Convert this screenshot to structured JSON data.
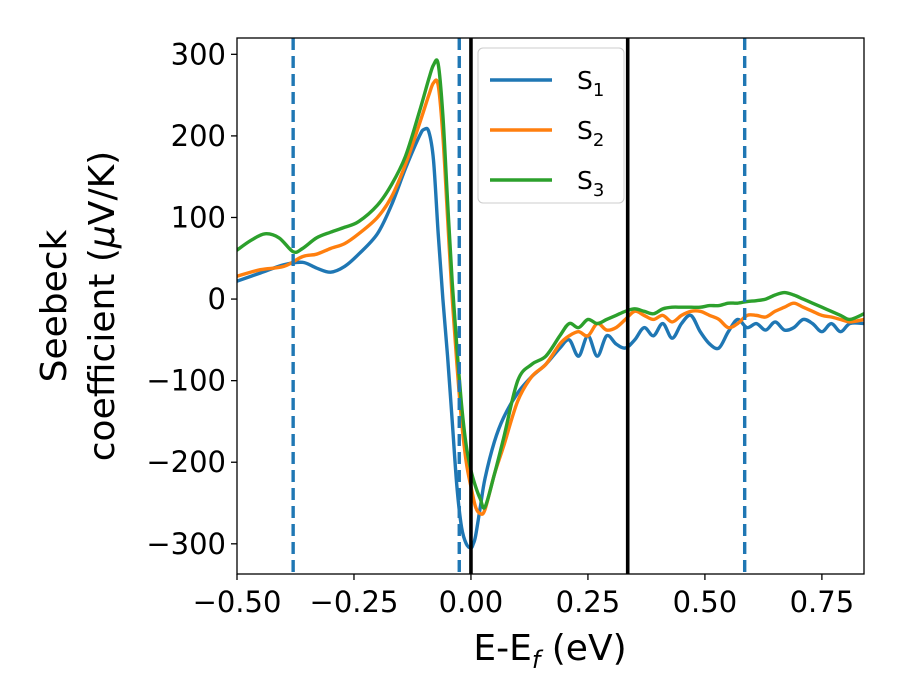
{
  "chart_data": {
    "type": "line",
    "xlabel": {
      "main": "E-E",
      "sub": "f",
      "suffix": " (eV)"
    },
    "ylabel": {
      "line1": "Seebeck",
      "line2": "coefficient  (",
      "mu": "μ",
      "unit": "V/K)"
    },
    "xlim": [
      -0.5,
      0.84
    ],
    "ylim": [
      -337,
      320
    ],
    "xticks": [
      {
        "value": -0.5,
        "label": "−0.50"
      },
      {
        "value": -0.25,
        "label": "−0.25"
      },
      {
        "value": 0.0,
        "label": "0.00"
      },
      {
        "value": 0.25,
        "label": "0.25"
      },
      {
        "value": 0.5,
        "label": "0.50"
      },
      {
        "value": 0.75,
        "label": "0.75"
      }
    ],
    "yticks": [
      {
        "value": 300,
        "label": "300"
      },
      {
        "value": 200,
        "label": "200"
      },
      {
        "value": 100,
        "label": "100"
      },
      {
        "value": 0,
        "label": "0"
      },
      {
        "value": -100,
        "label": "−100"
      },
      {
        "value": -200,
        "label": "−200"
      },
      {
        "value": -300,
        "label": "−300"
      }
    ],
    "grid": false,
    "legend": {
      "placement": "upper-center",
      "entries": [
        {
          "base": "S",
          "sub": "1"
        },
        {
          "base": "S",
          "sub": "2"
        },
        {
          "base": "S",
          "sub": "3"
        }
      ]
    },
    "vlines": [
      {
        "x": -0.38,
        "style": "dashed",
        "color": "#1f77b4"
      },
      {
        "x": -0.025,
        "style": "dashed",
        "color": "#1f77b4"
      },
      {
        "x": 0.585,
        "style": "dashed",
        "color": "#1f77b4"
      },
      {
        "x": 0.0,
        "style": "solid",
        "color": "#000000"
      },
      {
        "x": 0.335,
        "style": "solid",
        "color": "#000000"
      }
    ],
    "series": [
      {
        "name": "S1",
        "color": "#1f77b4",
        "x": [
          -0.5,
          -0.45,
          -0.4,
          -0.36,
          -0.33,
          -0.3,
          -0.27,
          -0.24,
          -0.2,
          -0.17,
          -0.14,
          -0.11,
          -0.1,
          -0.09,
          -0.08,
          -0.07,
          -0.06,
          -0.05,
          -0.04,
          -0.03,
          -0.02,
          -0.01,
          0.0,
          0.005,
          0.01,
          0.02,
          0.03,
          0.05,
          0.07,
          0.1,
          0.13,
          0.16,
          0.19,
          0.21,
          0.23,
          0.25,
          0.27,
          0.29,
          0.31,
          0.33,
          0.35,
          0.37,
          0.39,
          0.41,
          0.43,
          0.45,
          0.47,
          0.49,
          0.51,
          0.53,
          0.55,
          0.57,
          0.59,
          0.61,
          0.63,
          0.65,
          0.67,
          0.69,
          0.71,
          0.73,
          0.75,
          0.77,
          0.79,
          0.81,
          0.84
        ],
        "y": [
          22,
          32,
          42,
          45,
          38,
          33,
          40,
          55,
          80,
          115,
          160,
          200,
          208,
          205,
          170,
          80,
          0,
          -70,
          -150,
          -230,
          -280,
          -300,
          -305,
          -300,
          -290,
          -255,
          -220,
          -175,
          -145,
          -115,
          -95,
          -80,
          -60,
          -50,
          -70,
          -45,
          -70,
          -45,
          -55,
          -60,
          -50,
          -35,
          -45,
          -30,
          -48,
          -30,
          -20,
          -40,
          -55,
          -60,
          -40,
          -25,
          -35,
          -30,
          -38,
          -28,
          -38,
          -35,
          -25,
          -30,
          -40,
          -30,
          -40,
          -30,
          -30
        ]
      },
      {
        "name": "S2",
        "color": "#ff7f0e",
        "x": [
          -0.5,
          -0.45,
          -0.4,
          -0.36,
          -0.33,
          -0.3,
          -0.27,
          -0.24,
          -0.2,
          -0.17,
          -0.14,
          -0.11,
          -0.09,
          -0.08,
          -0.07,
          -0.06,
          -0.05,
          -0.04,
          -0.03,
          -0.02,
          -0.01,
          0.0,
          0.01,
          0.02,
          0.03,
          0.05,
          0.07,
          0.1,
          0.13,
          0.16,
          0.19,
          0.21,
          0.23,
          0.25,
          0.27,
          0.29,
          0.31,
          0.33,
          0.35,
          0.37,
          0.39,
          0.41,
          0.43,
          0.45,
          0.47,
          0.49,
          0.51,
          0.53,
          0.55,
          0.57,
          0.59,
          0.61,
          0.63,
          0.65,
          0.67,
          0.69,
          0.71,
          0.73,
          0.75,
          0.77,
          0.79,
          0.81,
          0.84
        ],
        "y": [
          28,
          36,
          40,
          52,
          55,
          62,
          68,
          80,
          100,
          125,
          165,
          215,
          250,
          265,
          262,
          200,
          100,
          0,
          -80,
          -150,
          -200,
          -230,
          -255,
          -263,
          -258,
          -215,
          -180,
          -125,
          -95,
          -80,
          -55,
          -45,
          -40,
          -45,
          -30,
          -38,
          -35,
          -25,
          -15,
          -20,
          -25,
          -20,
          -28,
          -20,
          -15,
          -15,
          -20,
          -25,
          -35,
          -30,
          -20,
          -20,
          -22,
          -15,
          -10,
          -5,
          -10,
          -15,
          -20,
          -22,
          -25,
          -28,
          -25
        ]
      },
      {
        "name": "S3",
        "color": "#2ca02c",
        "x": [
          -0.5,
          -0.47,
          -0.44,
          -0.41,
          -0.38,
          -0.36,
          -0.33,
          -0.3,
          -0.27,
          -0.24,
          -0.2,
          -0.17,
          -0.14,
          -0.11,
          -0.09,
          -0.08,
          -0.07,
          -0.06,
          -0.05,
          -0.04,
          -0.03,
          -0.02,
          -0.01,
          0.0,
          0.01,
          0.02,
          0.03,
          0.05,
          0.07,
          0.1,
          0.13,
          0.16,
          0.19,
          0.21,
          0.23,
          0.25,
          0.27,
          0.29,
          0.31,
          0.33,
          0.35,
          0.37,
          0.39,
          0.41,
          0.43,
          0.45,
          0.47,
          0.49,
          0.51,
          0.53,
          0.55,
          0.57,
          0.59,
          0.61,
          0.63,
          0.65,
          0.67,
          0.69,
          0.71,
          0.73,
          0.75,
          0.77,
          0.79,
          0.81,
          0.84
        ],
        "y": [
          60,
          72,
          80,
          75,
          58,
          62,
          75,
          82,
          88,
          95,
          115,
          140,
          175,
          230,
          270,
          287,
          288,
          225,
          120,
          20,
          -60,
          -130,
          -180,
          -210,
          -230,
          -245,
          -255,
          -215,
          -170,
          -100,
          -80,
          -70,
          -45,
          -30,
          -35,
          -25,
          -30,
          -25,
          -20,
          -15,
          -12,
          -15,
          -18,
          -12,
          -10,
          -10,
          -10,
          -10,
          -8,
          -8,
          -5,
          -5,
          -3,
          -2,
          0,
          5,
          8,
          5,
          0,
          -5,
          -10,
          -15,
          -20,
          -25,
          -18
        ]
      }
    ]
  }
}
